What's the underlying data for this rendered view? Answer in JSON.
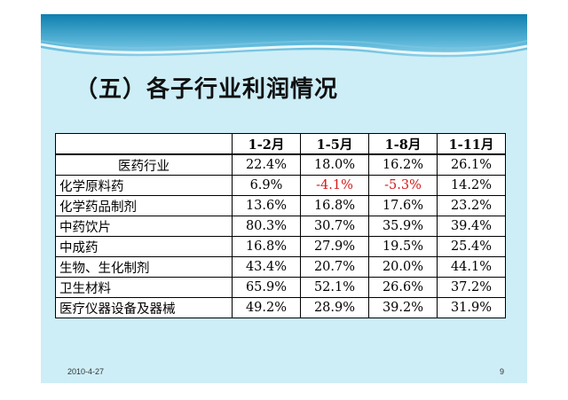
{
  "slide": {
    "title": "（五）各子行业利润情况",
    "footer_date": "2010-4-27",
    "page_number": "9"
  },
  "table": {
    "columns": [
      "",
      "1-2月",
      "1-5月",
      "1-8月",
      "1-11月"
    ],
    "rows": [
      {
        "label": "医药行业",
        "values": [
          "22.4%",
          "18.0%",
          "16.2%",
          "26.1%"
        ]
      },
      {
        "label": "化学原料药",
        "values": [
          "6.9%",
          "-4.1%",
          "-5.3%",
          "14.2%"
        ]
      },
      {
        "label": "化学药品制剂",
        "values": [
          "13.6%",
          "16.8%",
          "17.6%",
          "23.2%"
        ]
      },
      {
        "label": "中药饮片",
        "values": [
          "80.3%",
          "30.7%",
          "35.9%",
          "39.4%"
        ]
      },
      {
        "label": "中成药",
        "values": [
          "16.8%",
          "27.9%",
          "19.5%",
          "25.4%"
        ]
      },
      {
        "label": "生物、生化制剂",
        "values": [
          "43.4%",
          "20.7%",
          "20.0%",
          "44.1%"
        ]
      },
      {
        "label": "卫生材料",
        "values": [
          "65.9%",
          "52.1%",
          "26.6%",
          "37.2%"
        ]
      },
      {
        "label": "医疗仪器设备及器械",
        "values": [
          "49.2%",
          "28.9%",
          "39.2%",
          "31.9%"
        ]
      }
    ]
  },
  "colors": {
    "negative_value": "#d41a1a",
    "slide_background": "#cdeef7",
    "header_band": "#0e7fae"
  }
}
